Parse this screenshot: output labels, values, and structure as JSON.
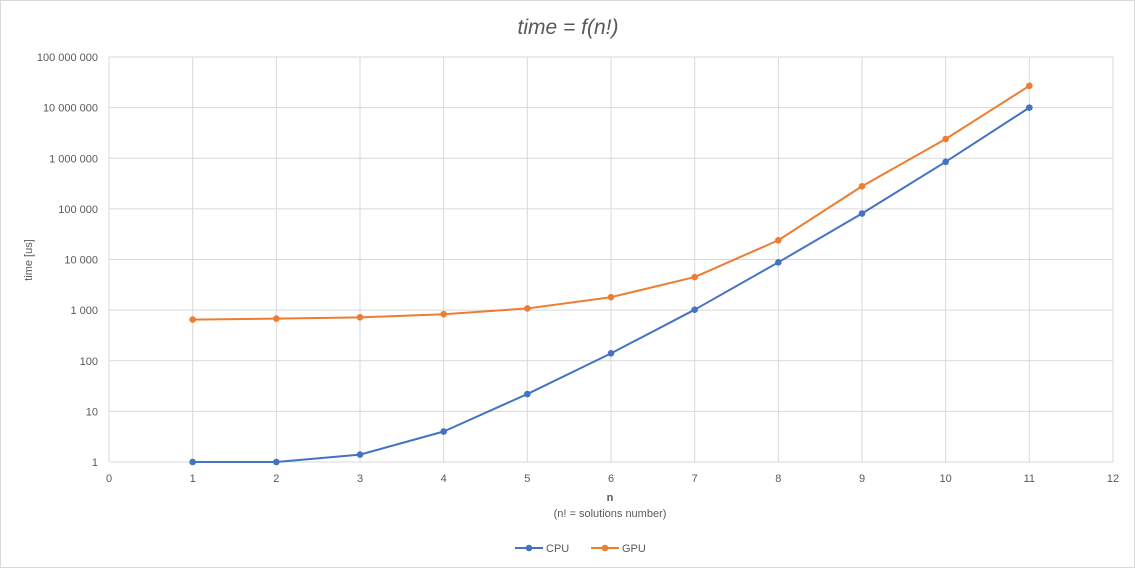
{
  "chart_data": {
    "type": "scatter",
    "title": "time = f(n!)",
    "xlabel": "n",
    "xlabel_sub": "(n! = solutions number)",
    "ylabel": "time [us]",
    "xlim": [
      0,
      12
    ],
    "ylim": [
      1,
      100000000
    ],
    "yscale": "log",
    "grid": true,
    "legend_position": "bottom",
    "x_ticks": [
      {
        "value": 0,
        "label": "0"
      },
      {
        "value": 1,
        "label": "1"
      },
      {
        "value": 2,
        "label": "2"
      },
      {
        "value": 3,
        "label": "3"
      },
      {
        "value": 4,
        "label": "4"
      },
      {
        "value": 5,
        "label": "5"
      },
      {
        "value": 6,
        "label": "6"
      },
      {
        "value": 7,
        "label": "7"
      },
      {
        "value": 8,
        "label": "8"
      },
      {
        "value": 9,
        "label": "9"
      },
      {
        "value": 10,
        "label": "10"
      },
      {
        "value": 11,
        "label": "11"
      },
      {
        "value": 12,
        "label": "12"
      }
    ],
    "y_ticks": [
      {
        "value": 1,
        "label": "1"
      },
      {
        "value": 10,
        "label": "10"
      },
      {
        "value": 100,
        "label": "100"
      },
      {
        "value": 1000,
        "label": "1 000"
      },
      {
        "value": 10000,
        "label": "10 000"
      },
      {
        "value": 100000,
        "label": "100 000"
      },
      {
        "value": 1000000,
        "label": "1 000 000"
      },
      {
        "value": 10000000,
        "label": "10 000 000"
      },
      {
        "value": 100000000,
        "label": "100 000 000"
      }
    ],
    "series": [
      {
        "name": "CPU",
        "color": "#4472c4",
        "points": [
          {
            "x": 1,
            "y": 1
          },
          {
            "x": 2,
            "y": 1
          },
          {
            "x": 3,
            "y": 1.4
          },
          {
            "x": 4,
            "y": 4
          },
          {
            "x": 5,
            "y": 22
          },
          {
            "x": 6,
            "y": 140
          },
          {
            "x": 7,
            "y": 1020
          },
          {
            "x": 8,
            "y": 8800
          },
          {
            "x": 9,
            "y": 81000
          },
          {
            "x": 10,
            "y": 850000
          },
          {
            "x": 11,
            "y": 10000000
          }
        ]
      },
      {
        "name": "GPU",
        "color": "#ed7d31",
        "points": [
          {
            "x": 1,
            "y": 650
          },
          {
            "x": 2,
            "y": 680
          },
          {
            "x": 3,
            "y": 720
          },
          {
            "x": 4,
            "y": 830
          },
          {
            "x": 5,
            "y": 1080
          },
          {
            "x": 6,
            "y": 1800
          },
          {
            "x": 7,
            "y": 4500
          },
          {
            "x": 8,
            "y": 24000
          },
          {
            "x": 9,
            "y": 280000
          },
          {
            "x": 10,
            "y": 2400000
          },
          {
            "x": 11,
            "y": 27000000
          }
        ]
      }
    ]
  }
}
